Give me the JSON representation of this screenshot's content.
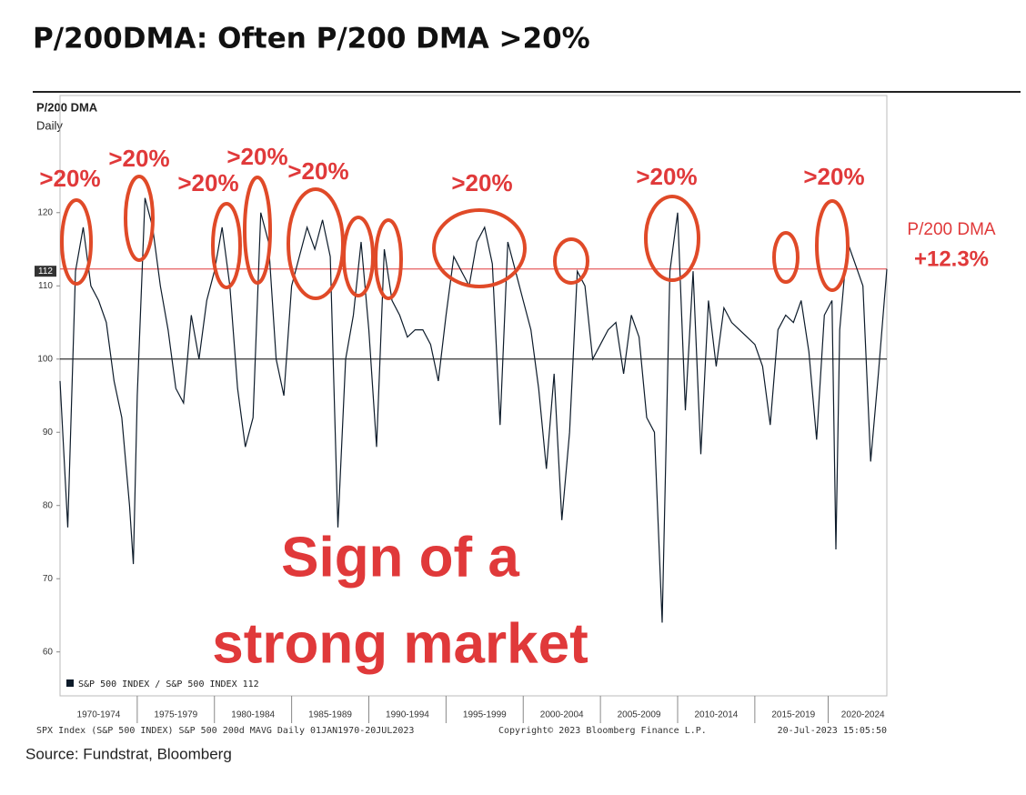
{
  "title": "P/200DMA: Often P/200 DMA >20%",
  "source": "Source: Fundstrat, Bloomberg",
  "chart_data": {
    "type": "line",
    "title": "P/200 DMA",
    "subtitle": "Daily",
    "legend_label": "S&P 500 INDEX / S&P 500 INDEX",
    "last_value": 112,
    "footer_left": "SPX Index (S&P 500 INDEX) S&P 500 200d MAVG  Daily 01JAN1970-20JUL2023",
    "footer_center": "Copyright© 2023 Bloomberg Finance L.P.",
    "footer_right": "20-Jul-2023 15:05:50",
    "annotations": [
      ">20%",
      ">20%",
      ">20%",
      ">20%",
      ">20%",
      ">20%",
      ">20%",
      ">20%"
    ],
    "callout_label": "P/200 DMA",
    "callout_value": "+12.3%",
    "headline": [
      "Sign of a",
      "strong market"
    ],
    "ylim": [
      54,
      136
    ],
    "yticks": [
      60,
      70,
      80,
      90,
      100,
      110,
      120
    ],
    "xlim": [
      1970,
      2023.55
    ],
    "xticks": [
      {
        "value": 1972.5,
        "label": "1970-1974"
      },
      {
        "value": 1977.5,
        "label": "1975-1979"
      },
      {
        "value": 1982.5,
        "label": "1980-1984"
      },
      {
        "value": 1987.5,
        "label": "1985-1989"
      },
      {
        "value": 1992.5,
        "label": "1990-1994"
      },
      {
        "value": 1997.5,
        "label": "1995-1999"
      },
      {
        "value": 2002.5,
        "label": "2000-2004"
      },
      {
        "value": 2007.5,
        "label": "2005-2009"
      },
      {
        "value": 2012.5,
        "label": "2010-2014"
      },
      {
        "value": 2017.5,
        "label": "2015-2019"
      },
      {
        "value": 2022,
        "label": "2020-2024"
      }
    ],
    "ref_lines": [
      {
        "value": 100,
        "color": "#000000"
      },
      {
        "value": 112.3,
        "color": "#e0393a"
      }
    ],
    "series": [
      {
        "name": "S&P 500 INDEX / S&P 500 INDEX",
        "color": "#0d1b2a",
        "x": [
          1970,
          1970.5,
          1971,
          1971.5,
          1972,
          1972.5,
          1973,
          1973.5,
          1974,
          1974.5,
          1974.75,
          1975,
          1975.5,
          1976,
          1976.5,
          1977,
          1977.5,
          1978,
          1978.5,
          1979,
          1979.5,
          1980,
          1980.5,
          1981,
          1981.5,
          1982,
          1982.5,
          1983,
          1983.5,
          1984,
          1984.5,
          1985,
          1985.5,
          1986,
          1986.5,
          1987,
          1987.5,
          1988,
          1988.5,
          1989,
          1989.5,
          1990,
          1990.5,
          1991,
          1991.5,
          1992,
          1992.5,
          1993,
          1993.5,
          1994,
          1994.5,
          1995,
          1995.5,
          1996,
          1996.5,
          1997,
          1997.5,
          1998,
          1998.5,
          1999,
          1999.5,
          2000,
          2000.5,
          2001,
          2001.5,
          2002,
          2002.5,
          2003,
          2003.5,
          2004,
          2004.5,
          2005,
          2005.5,
          2006,
          2006.5,
          2007,
          2007.5,
          2008,
          2008.5,
          2009,
          2009.5,
          2010,
          2010.5,
          2011,
          2011.5,
          2012,
          2012.5,
          2013,
          2013.5,
          2014,
          2014.5,
          2015,
          2015.5,
          2016,
          2016.5,
          2017,
          2017.5,
          2018,
          2018.5,
          2019,
          2019.5,
          2020,
          2020.25,
          2020.5,
          2021,
          2021.5,
          2022,
          2022.5,
          2023,
          2023.55
        ],
        "values": [
          97,
          77,
          112,
          118,
          110,
          108,
          105,
          97,
          92,
          80,
          72,
          95,
          122,
          118,
          110,
          104,
          96,
          94,
          106,
          100,
          108,
          112,
          118,
          110,
          96,
          88,
          92,
          120,
          116,
          100,
          95,
          110,
          114,
          118,
          115,
          119,
          114,
          77,
          100,
          106,
          116,
          104,
          88,
          115,
          108,
          106,
          103,
          104,
          104,
          102,
          97,
          106,
          114,
          112,
          110,
          116,
          118,
          113,
          91,
          116,
          112,
          108,
          104,
          96,
          85,
          98,
          78,
          90,
          112,
          110,
          100,
          102,
          104,
          105,
          98,
          106,
          103,
          92,
          90,
          64,
          112,
          120,
          93,
          112,
          87,
          108,
          99,
          107,
          105,
          104,
          103,
          102,
          99,
          91,
          104,
          106,
          105,
          108,
          101,
          89,
          106,
          108,
          74,
          104,
          116,
          113,
          110,
          86,
          98,
          112.3
        ]
      }
    ]
  }
}
